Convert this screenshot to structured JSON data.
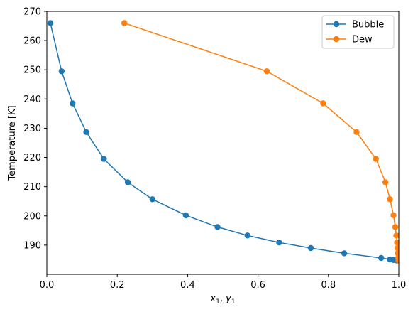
{
  "chart_data": {
    "type": "line",
    "title": "",
    "xlabel": "x1, y1",
    "ylabel": "Temperature [K]",
    "xlim": [
      0,
      1
    ],
    "ylim": [
      180,
      270
    ],
    "xticks": [
      0.0,
      0.2,
      0.4,
      0.6,
      0.8,
      1.0
    ],
    "xtick_labels": [
      "0.0",
      "0.2",
      "0.4",
      "0.6",
      "0.8",
      "1.0"
    ],
    "yticks": [
      190,
      200,
      210,
      220,
      230,
      240,
      250,
      260,
      270
    ],
    "ytick_labels": [
      "190",
      "200",
      "210",
      "220",
      "230",
      "240",
      "250",
      "260",
      "270"
    ],
    "grid": false,
    "legend": "top-right",
    "series": [
      {
        "name": "Bubble",
        "color": "#1f77b4",
        "marker": "circle",
        "x": [
          0.01,
          0.042,
          0.073,
          0.112,
          0.162,
          0.23,
          0.3,
          0.395,
          0.485,
          0.57,
          0.66,
          0.75,
          0.845,
          0.95,
          0.975,
          0.985,
          0.995
        ],
        "y": [
          266.0,
          249.5,
          238.5,
          228.7,
          219.5,
          211.5,
          205.7,
          200.2,
          196.2,
          193.3,
          190.9,
          189.0,
          187.2,
          185.6,
          185.1,
          184.9,
          184.7
        ]
      },
      {
        "name": "Dew",
        "color": "#ff7f0e",
        "marker": "circle",
        "x": [
          0.22,
          0.625,
          0.785,
          0.88,
          0.935,
          0.962,
          0.975,
          0.985,
          0.99,
          0.993,
          0.995,
          0.996,
          0.997,
          0.998,
          0.999
        ],
        "y": [
          266.0,
          249.5,
          238.5,
          228.7,
          219.5,
          211.5,
          205.7,
          200.2,
          196.2,
          193.3,
          190.9,
          189.0,
          187.2,
          185.6,
          184.7
        ]
      }
    ]
  }
}
